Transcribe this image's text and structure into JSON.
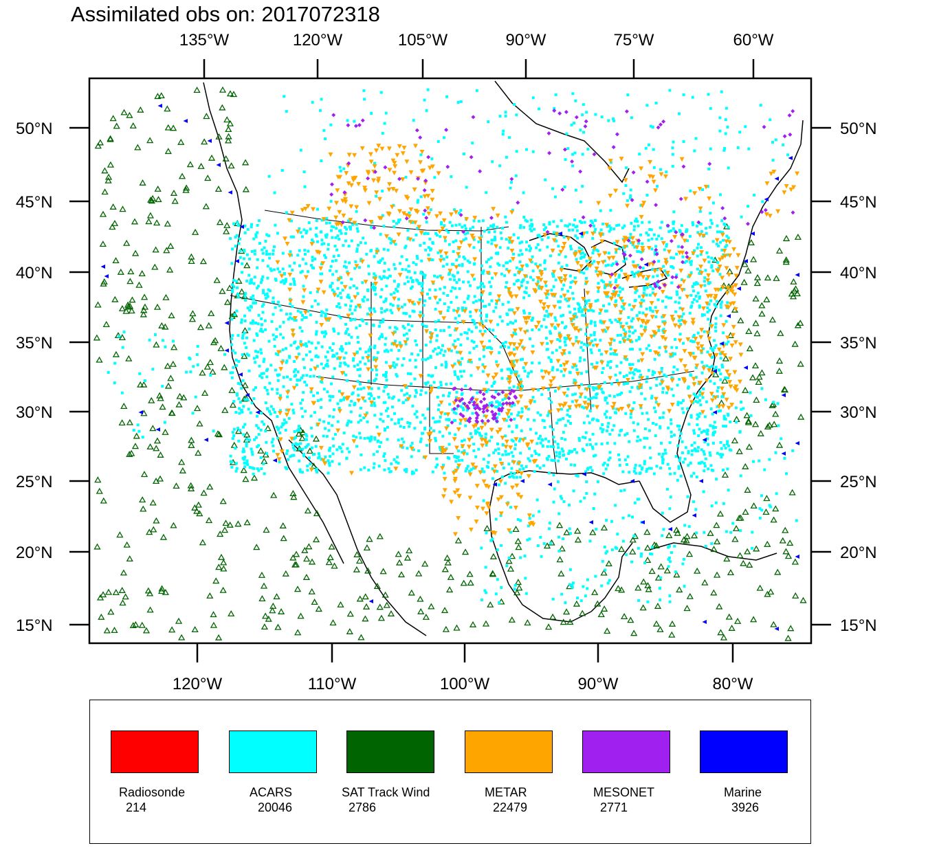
{
  "title": "Assimilated obs on: 2017072318",
  "axes": {
    "top_lon_labels": [
      "135°W",
      "120°W",
      "105°W",
      "90°W",
      "75°W",
      "60°W"
    ],
    "bottom_lon_labels": [
      "120°W",
      "110°W",
      "100°W",
      "90°W",
      "80°W"
    ],
    "lat_labels": [
      "50°N",
      "45°N",
      "40°N",
      "35°N",
      "30°N",
      "25°N",
      "20°N",
      "15°N"
    ]
  },
  "colors": {
    "radiosonde": "#ff0000",
    "acars": "#00ffff",
    "sat_track_wind": "#006400",
    "metar": "#ffa500",
    "mesonet": "#a020f0",
    "marine": "#0000ff",
    "coastline": "#000000"
  },
  "legend": [
    {
      "label": "Radiosonde",
      "count": "214",
      "color": "#ff0000"
    },
    {
      "label": "ACARS",
      "count": "20046",
      "color": "#00ffff"
    },
    {
      "label": "SAT Track Wind",
      "count": "2786",
      "color": "#006400"
    },
    {
      "label": "METAR",
      "count": "22479",
      "color": "#ffa500"
    },
    {
      "label": "MESONET",
      "count": "2771",
      "color": "#a020f0"
    },
    {
      "label": "Marine",
      "count": "3926",
      "color": "#0000ff"
    }
  ]
}
